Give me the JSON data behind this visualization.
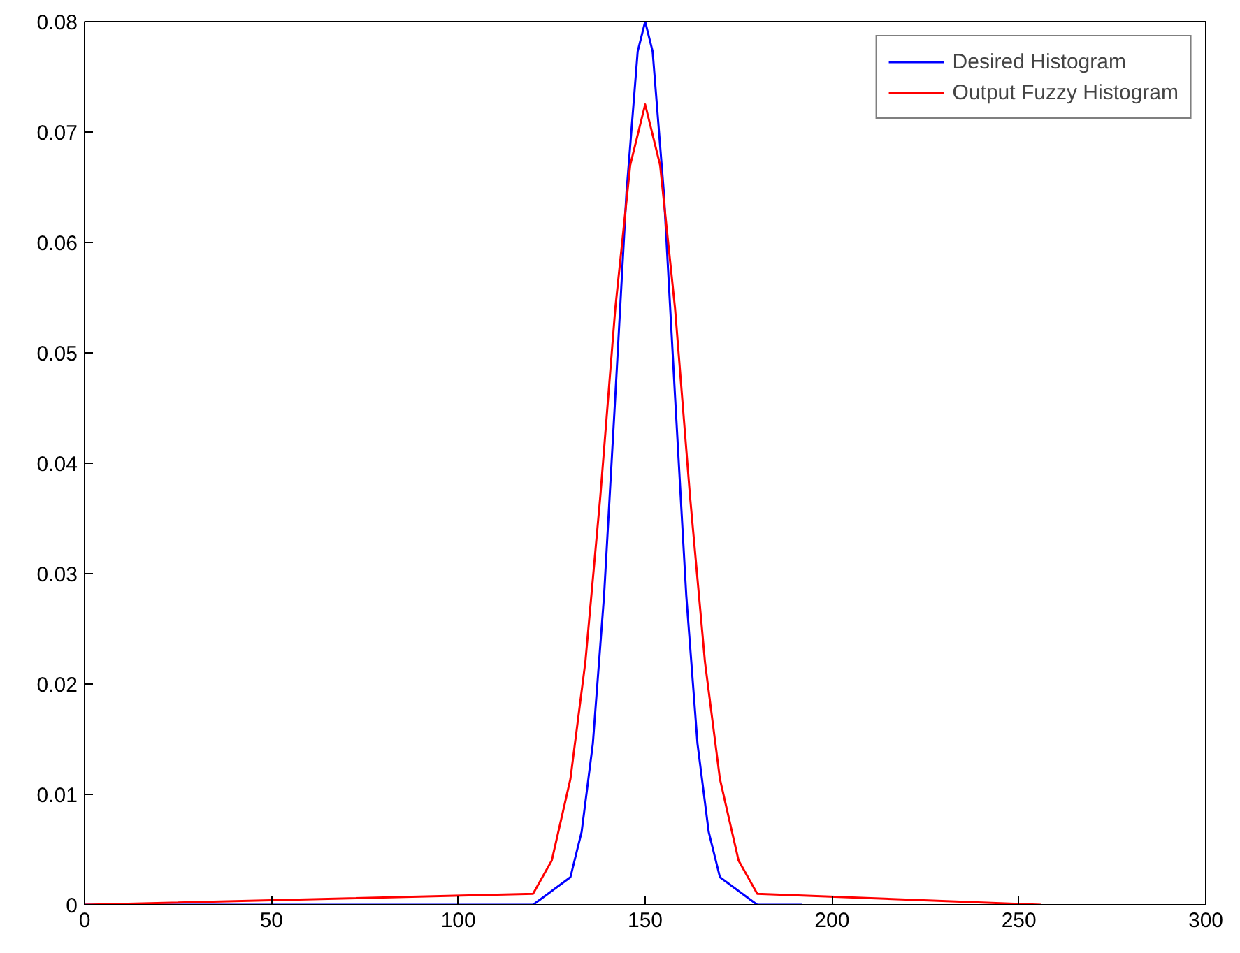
{
  "chart_data": {
    "type": "line",
    "xlim": [
      0,
      300
    ],
    "ylim": [
      0,
      0.08
    ],
    "xticks": [
      0,
      50,
      100,
      150,
      200,
      250,
      300
    ],
    "yticks": [
      0,
      0.01,
      0.02,
      0.03,
      0.04,
      0.05,
      0.06,
      0.07,
      0.08
    ],
    "grid": false,
    "legend": "top right",
    "line_style": "solid",
    "marker": "none",
    "series": [
      {
        "name": "Desired Histogram",
        "color": "#0000ff",
        "x": [
          0,
          120,
          130,
          133,
          136,
          139,
          142,
          145,
          148,
          150,
          152,
          155,
          158,
          161,
          164,
          167,
          170,
          180,
          192
        ],
        "values": [
          0,
          0,
          0.0025,
          0.0066,
          0.0146,
          0.028,
          0.046,
          0.0645,
          0.0773,
          0.08,
          0.0773,
          0.0645,
          0.046,
          0.028,
          0.0146,
          0.0066,
          0.0025,
          0,
          0
        ]
      },
      {
        "name": "Output Fuzzy Histogram",
        "color": "#ff0000",
        "x": [
          0,
          120,
          125,
          130,
          134,
          138,
          142,
          146,
          150,
          154,
          158,
          162,
          166,
          170,
          175,
          180,
          256
        ],
        "values": [
          0,
          0.001,
          0.004,
          0.0114,
          0.022,
          0.037,
          0.054,
          0.067,
          0.0725,
          0.067,
          0.054,
          0.037,
          0.022,
          0.0114,
          0.004,
          0.001,
          0
        ]
      }
    ]
  }
}
